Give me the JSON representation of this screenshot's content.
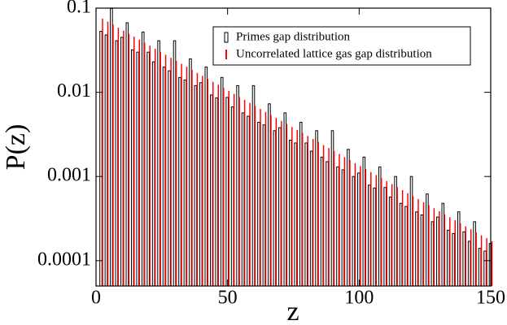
{
  "chart_data": {
    "type": "bar",
    "xlabel": "z",
    "ylabel": "P(z)",
    "x": [
      2,
      4,
      6,
      8,
      10,
      12,
      14,
      16,
      18,
      20,
      22,
      24,
      26,
      28,
      30,
      32,
      34,
      36,
      38,
      40,
      42,
      44,
      46,
      48,
      50,
      52,
      54,
      56,
      58,
      60,
      62,
      64,
      66,
      68,
      70,
      72,
      74,
      76,
      78,
      80,
      82,
      84,
      86,
      88,
      90,
      92,
      94,
      96,
      98,
      100,
      102,
      104,
      106,
      108,
      110,
      112,
      114,
      116,
      118,
      120,
      122,
      124,
      126,
      128,
      130,
      132,
      134,
      136,
      138,
      140,
      142,
      144,
      146,
      148,
      150
    ],
    "series": [
      {
        "name": "Primes gap distribution",
        "color": "#000000",
        "values": [
          0.053,
          0.048,
          0.099,
          0.041,
          0.045,
          0.067,
          0.032,
          0.03,
          0.052,
          0.03,
          0.023,
          0.041,
          0.02,
          0.018,
          0.041,
          0.015,
          0.014,
          0.025,
          0.012,
          0.013,
          0.02,
          0.0093,
          0.0086,
          0.015,
          0.0087,
          0.0067,
          0.012,
          0.0057,
          0.0052,
          0.012,
          0.0044,
          0.0041,
          0.0073,
          0.0035,
          0.0038,
          0.0057,
          0.0027,
          0.0025,
          0.0044,
          0.0025,
          0.002,
          0.0035,
          0.0017,
          0.0015,
          0.0035,
          0.0013,
          0.0012,
          0.0021,
          0.001,
          0.0011,
          0.0017,
          0.00079,
          0.00073,
          0.0013,
          0.00074,
          0.00057,
          0.001,
          0.00048,
          0.00044,
          0.001,
          0.00038,
          0.00035,
          0.00062,
          0.00029,
          0.00033,
          0.00048,
          0.00023,
          0.00021,
          0.00038,
          0.00022,
          0.00017,
          0.00029,
          0.00014,
          0.00013,
          0.00016
        ]
      },
      {
        "name": "Uncorrelated lattice gas gap distribution",
        "color": "#ff0000",
        "values": [
          0.075,
          0.0691,
          0.0636,
          0.0586,
          0.054,
          0.0497,
          0.0458,
          0.0422,
          0.0388,
          0.0358,
          0.0329,
          0.0303,
          0.0279,
          0.0257,
          0.0237,
          0.0218,
          0.0201,
          0.0185,
          0.017,
          0.0157,
          0.0145,
          0.0133,
          0.0123,
          0.0113,
          0.0104,
          0.00958,
          0.00882,
          0.00813,
          0.00748,
          0.00689,
          0.00635,
          0.00585,
          0.00538,
          0.00496,
          0.00457,
          0.00421,
          0.00387,
          0.00357,
          0.00329,
          0.00303,
          0.00279,
          0.00257,
          0.00236,
          0.00218,
          0.00201,
          0.00185,
          0.0017,
          0.00157,
          0.00144,
          0.00133,
          0.00123,
          0.00113,
          0.00104,
          0.000957,
          0.000881,
          0.000812,
          0.000748,
          0.000689,
          0.000634,
          0.000584,
          0.000538,
          0.000495,
          0.000456,
          0.00042,
          0.000387,
          0.000356,
          0.000328,
          0.000302,
          0.000278,
          0.000256,
          0.000236,
          0.000218,
          0.0002,
          0.000185,
          0.00017
        ]
      }
    ],
    "xlim": [
      0,
      150
    ],
    "xticks": [
      0,
      50,
      100,
      150
    ],
    "ylim": [
      5e-05,
      0.1
    ],
    "yticks": [
      0.0001,
      0.001,
      0.01,
      0.1
    ],
    "ylog": true,
    "legend": "upper-right"
  }
}
